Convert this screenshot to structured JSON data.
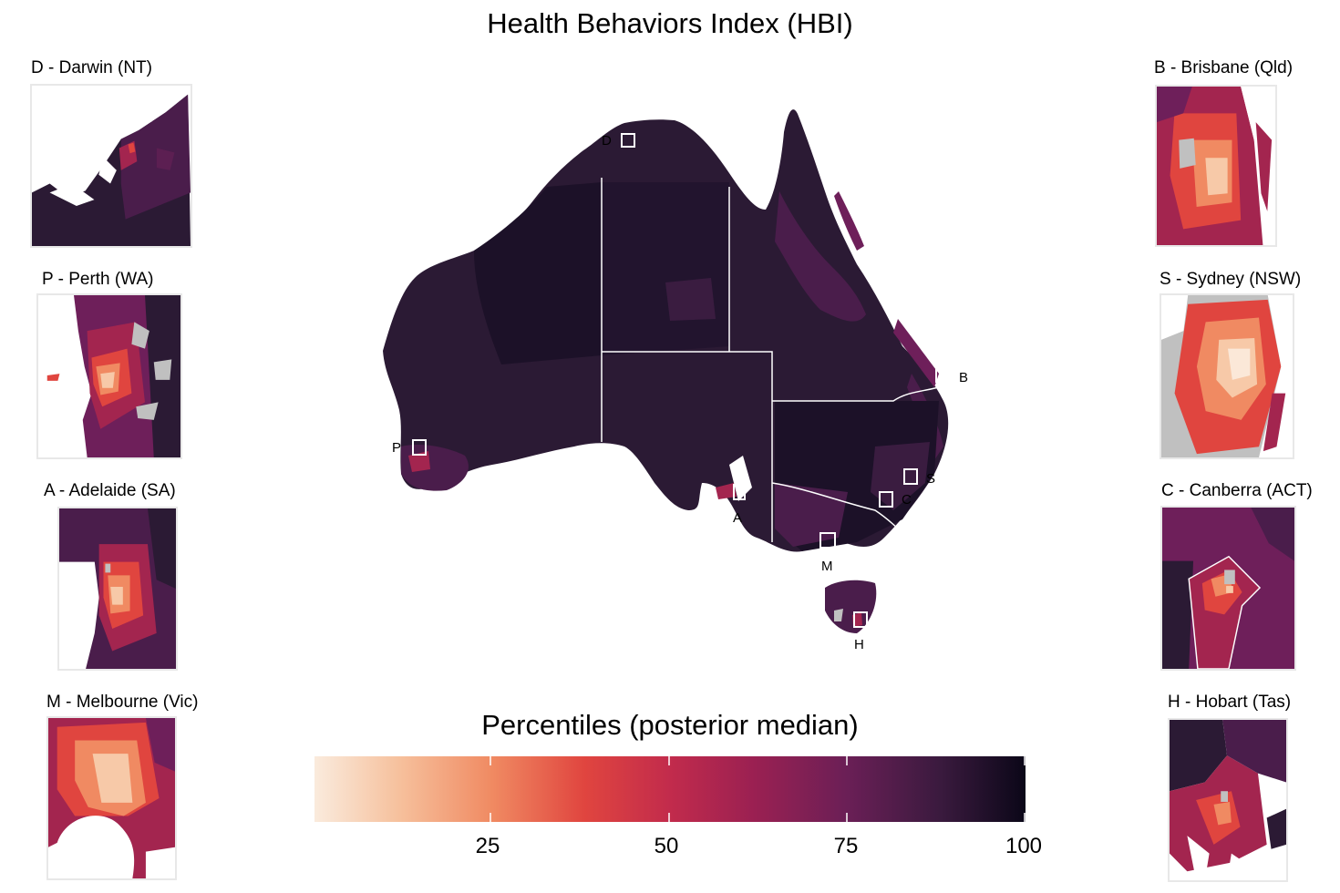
{
  "title": "Health Behaviors Index (HBI)",
  "colors": {
    "darkest": "#140c20",
    "dark": "#2b1a34",
    "mid_dark": "#4a1d4b",
    "purple": "#6e1f5a",
    "magenta": "#a3254f",
    "red": "#e0453f",
    "orange": "#f08a62",
    "light": "#f7c9a8",
    "lightest": "#fbe8d8",
    "missing": "#c0c0c0",
    "boundary": "#ffffff"
  },
  "insets": [
    {
      "code": "D",
      "label": "D - Darwin (NT)"
    },
    {
      "code": "P",
      "label": "P - Perth (WA)"
    },
    {
      "code": "A",
      "label": "A - Adelaide (SA)"
    },
    {
      "code": "M",
      "label": "M - Melbourne (Vic)"
    },
    {
      "code": "B",
      "label": "B - Brisbane (Qld)"
    },
    {
      "code": "S",
      "label": "S - Sydney (NSW)"
    },
    {
      "code": "C",
      "label": "C - Canberra (ACT)"
    },
    {
      "code": "H",
      "label": "H - Hobart (Tas)"
    }
  ],
  "map_markers": [
    "D",
    "B",
    "P",
    "S",
    "C",
    "A",
    "M",
    "H"
  ],
  "legend": {
    "title": "Percentiles (posterior median)",
    "ticks": [
      "25",
      "50",
      "75",
      "100"
    ]
  }
}
